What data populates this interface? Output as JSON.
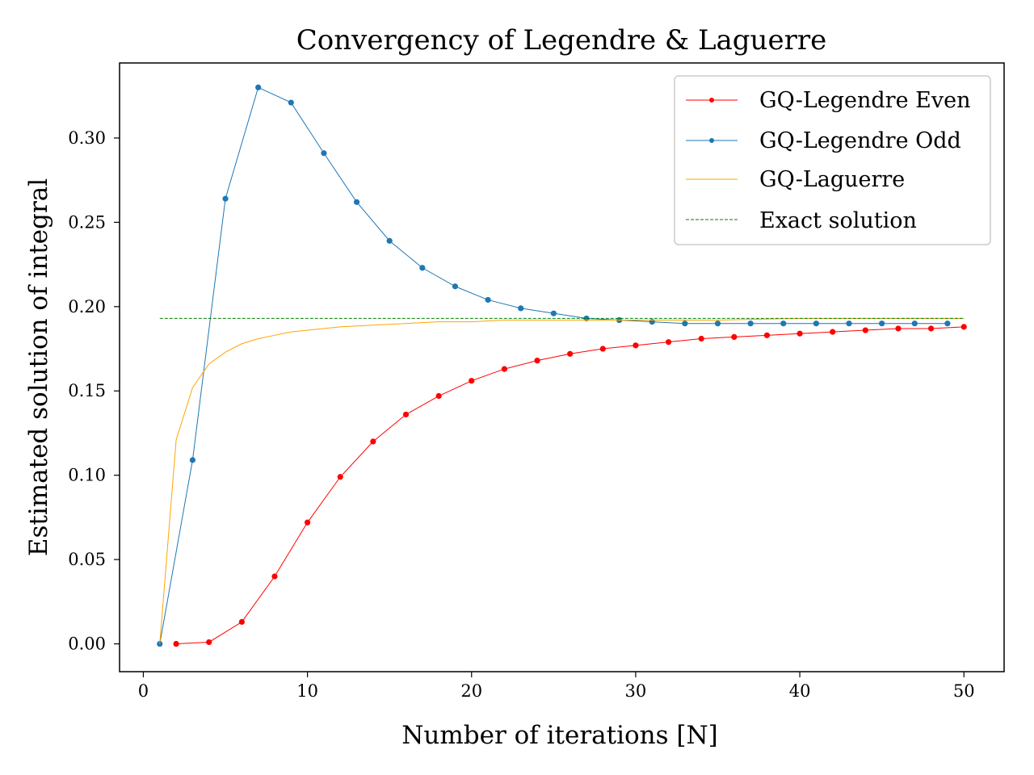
{
  "chart_data": {
    "type": "line",
    "title": "Convergency of Legendre & Laguerre",
    "xlabel": "Number of iterations [N]",
    "ylabel": "Estimated solution of integral",
    "xlim": [
      -1.45,
      52.45
    ],
    "ylim": [
      -0.0165,
      0.3445
    ],
    "xticks": [
      0,
      10,
      20,
      30,
      40,
      50
    ],
    "yticks": [
      0.0,
      0.05,
      0.1,
      0.15,
      0.2,
      0.25,
      0.3
    ],
    "ytick_labels": [
      "0.00",
      "0.05",
      "0.10",
      "0.15",
      "0.20",
      "0.25",
      "0.30"
    ],
    "grid": false,
    "legend_position": "top-right",
    "series": [
      {
        "name": "GQ-Legendre Even",
        "color": "#ff0000",
        "style": "line-with-markers",
        "x": [
          2,
          4,
          6,
          8,
          10,
          12,
          14,
          16,
          18,
          20,
          22,
          24,
          26,
          28,
          30,
          32,
          34,
          36,
          38,
          40,
          42,
          44,
          46,
          48,
          50
        ],
        "y": [
          0.0,
          0.001,
          0.013,
          0.04,
          0.072,
          0.099,
          0.12,
          0.136,
          0.147,
          0.156,
          0.163,
          0.168,
          0.172,
          0.175,
          0.177,
          0.179,
          0.181,
          0.182,
          0.183,
          0.184,
          0.185,
          0.186,
          0.187,
          0.187,
          0.188
        ]
      },
      {
        "name": "GQ-Legendre Odd",
        "color": "#1f77b4",
        "style": "line-with-markers",
        "x": [
          1,
          3,
          5,
          7,
          9,
          11,
          13,
          15,
          17,
          19,
          21,
          23,
          25,
          27,
          29,
          31,
          33,
          35,
          37,
          39,
          41,
          43,
          45,
          47,
          49
        ],
        "y": [
          0.0,
          0.109,
          0.264,
          0.33,
          0.321,
          0.291,
          0.262,
          0.239,
          0.223,
          0.212,
          0.204,
          0.199,
          0.196,
          0.193,
          0.192,
          0.191,
          0.19,
          0.19,
          0.19,
          0.19,
          0.19,
          0.19,
          0.19,
          0.19,
          0.19
        ]
      },
      {
        "name": "GQ-Laguerre",
        "color": "#ffa500",
        "style": "line",
        "x": [
          1,
          2,
          3,
          4,
          5,
          6,
          7,
          8,
          9,
          10,
          12,
          14,
          16,
          18,
          20,
          22,
          24,
          26,
          28,
          30,
          35,
          40,
          45,
          50
        ],
        "y": [
          0.0,
          0.121,
          0.152,
          0.166,
          0.173,
          0.178,
          0.181,
          0.183,
          0.185,
          0.186,
          0.188,
          0.189,
          0.19,
          0.191,
          0.191,
          0.192,
          0.192,
          0.192,
          0.192,
          0.192,
          0.192,
          0.193,
          0.193,
          0.193
        ]
      },
      {
        "name": "Exact solution",
        "color": "#008000",
        "style": "dashed",
        "x": [
          1,
          50
        ],
        "y": [
          0.193,
          0.193
        ]
      }
    ]
  }
}
